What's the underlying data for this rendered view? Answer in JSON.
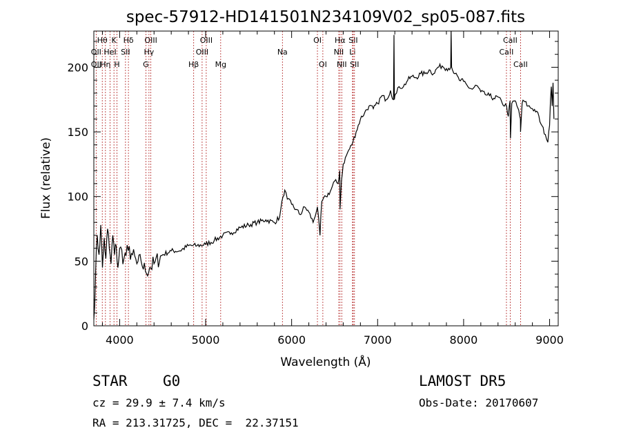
{
  "chart_data": {
    "type": "line",
    "title": "spec-57912-HD141501N234109V02_sp05-087.fits",
    "xlabel": "Wavelength (Å)",
    "ylabel": "Flux (relative)",
    "xlim": [
      3700,
      9100
    ],
    "ylim": [
      0,
      228
    ],
    "x_ticks": [
      4000,
      5000,
      6000,
      7000,
      8000,
      9000
    ],
    "y_ticks": [
      0,
      50,
      100,
      150,
      200
    ],
    "grid": false,
    "series": [
      {
        "x": [
          3700,
          3720,
          3740,
          3760,
          3780,
          3800,
          3820,
          3840,
          3860,
          3880,
          3900,
          3920,
          3940,
          3960,
          3980,
          4000,
          4050,
          4100,
          4150,
          4200,
          4250,
          4300,
          4350,
          4400,
          4500,
          4600,
          4700,
          4800,
          4900,
          5000,
          5100,
          5200,
          5300,
          5400,
          5500,
          5600,
          5700,
          5800,
          5860,
          5900,
          5920,
          5950,
          6000,
          6050,
          6100,
          6150,
          6200,
          6250,
          6300,
          6330,
          6350,
          6400,
          6450,
          6500,
          6540,
          6560,
          6563,
          6580,
          6600,
          6650,
          6700,
          6750,
          6800,
          6850,
          6900,
          6950,
          7000,
          7050,
          7100,
          7150,
          7185,
          7190,
          7195,
          7200,
          7220,
          7250,
          7300,
          7350,
          7400,
          7450,
          7500,
          7550,
          7600,
          7650,
          7700,
          7750,
          7800,
          7850,
          7855,
          7860,
          7870,
          7900,
          7950,
          8000,
          8050,
          8100,
          8150,
          8200,
          8250,
          8300,
          8350,
          8400,
          8450,
          8500,
          8520,
          8540,
          8545,
          8560,
          8600,
          8620,
          8640,
          8660,
          8662,
          8680,
          8700,
          8750,
          8800,
          8850,
          8900,
          8950,
          8980,
          9000,
          9010,
          9020,
          9030,
          9040,
          9050
        ],
        "y": [
          5,
          40,
          70,
          55,
          78,
          45,
          68,
          52,
          75,
          60,
          48,
          70,
          55,
          62,
          45,
          60,
          52,
          58,
          55,
          48,
          50,
          42,
          45,
          48,
          55,
          58,
          58,
          62,
          62,
          63,
          66,
          70,
          72,
          76,
          78,
          80,
          82,
          80,
          84,
          100,
          105,
          98,
          94,
          90,
          86,
          92,
          88,
          80,
          92,
          70,
          96,
          100,
          104,
          112,
          110,
          120,
          90,
          112,
          125,
          134,
          140,
          150,
          160,
          165,
          170,
          168,
          172,
          178,
          175,
          182,
          175,
          225,
          175,
          178,
          180,
          185,
          185,
          190,
          193,
          192,
          195,
          195,
          198,
          195,
          200,
          201,
          199,
          200,
          228,
          200,
          198,
          195,
          190,
          189,
          185,
          183,
          186,
          181,
          179,
          178,
          176,
          177,
          172,
          170,
          162,
          174,
          145,
          172,
          174,
          170,
          167,
          160,
          150,
          172,
          174,
          170,
          168,
          166,
          156,
          148,
          142,
          155,
          175,
          185,
          170,
          188,
          160
        ]
      }
    ],
    "line_markers": [
      {
        "label": "Hθ",
        "x": 3798,
        "row": 0
      },
      {
        "label": "Hη",
        "x": 3835,
        "row": 2
      },
      {
        "label": "K",
        "x": 3934,
        "row": 0
      },
      {
        "label": "H",
        "x": 3969,
        "row": 2
      },
      {
        "label": "Hδ",
        "x": 4102,
        "row": 0
      },
      {
        "label": "SII",
        "x": 4068,
        "row": 1
      },
      {
        "label": "OIII",
        "x": 4363,
        "row": 0
      },
      {
        "label": "Hγ",
        "x": 4341,
        "row": 1
      },
      {
        "label": "G",
        "x": 4305,
        "row": 2
      },
      {
        "label": "Hβ",
        "x": 4861,
        "row": 2
      },
      {
        "label": "OIII",
        "x": 4959,
        "row": 1
      },
      {
        "label": "OIII",
        "x": 5007,
        "row": 0
      },
      {
        "label": "Mg",
        "x": 5175,
        "row": 2
      },
      {
        "label": "Na",
        "x": 5893,
        "row": 1
      },
      {
        "label": "OI",
        "x": 6300,
        "row": 0
      },
      {
        "label": "OI",
        "x": 6363,
        "row": 2
      },
      {
        "label": "NII",
        "x": 6548,
        "row": 1
      },
      {
        "label": "Hα",
        "x": 6563,
        "row": 0
      },
      {
        "label": "NII",
        "x": 6583,
        "row": 2
      },
      {
        "label": "Li",
        "x": 6708,
        "row": 1
      },
      {
        "label": "SII",
        "x": 6716,
        "row": 0
      },
      {
        "label": "SII",
        "x": 6731,
        "row": 2
      },
      {
        "label": "CaII",
        "x": 8498,
        "row": 1
      },
      {
        "label": "CaII",
        "x": 8542,
        "row": 0
      },
      {
        "label": "CaII",
        "x": 8662,
        "row": 2
      },
      {
        "label": "OII",
        "x": 3727,
        "row": 1
      },
      {
        "label": "HeI",
        "x": 3889,
        "row": 1
      },
      {
        "label": "OII",
        "x": 3727,
        "row": 2
      }
    ],
    "marker_color": "#b22222"
  },
  "info": {
    "object_type": "STAR",
    "subclass": "G0",
    "redshift": "cz = 29.9 ± 7.4 km/s",
    "coords": "RA = 213.31725, DEC =  22.37151",
    "survey": "LAMOST DR5",
    "obs_date": "Obs-Date: 20170607"
  }
}
